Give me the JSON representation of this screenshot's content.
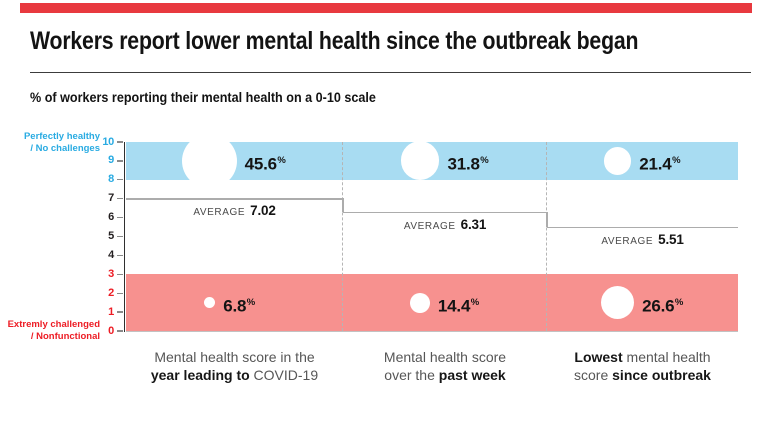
{
  "colors": {
    "accent_red": "#e8393f",
    "text_blue": "#29abe2",
    "text_red": "#ed1c24"
  },
  "header": {
    "title": "Workers report lower mental health since the outbreak began",
    "subtitle": "% of workers reporting their mental health on a 0-10 scale"
  },
  "axis": {
    "max_caption_line1": "Perfectly healthy",
    "max_caption_line2": "/ No challenges",
    "min_caption_line1": "Extremly challenged",
    "min_caption_line2": "/ Nonfunctional"
  },
  "chart_data": {
    "type": "scatter",
    "subtype": "distribution-bubbles-with-bands",
    "title": "% of workers reporting their mental health on a 0-10 scale",
    "ylim": [
      0,
      10
    ],
    "yticks": [
      0,
      1,
      2,
      3,
      4,
      5,
      6,
      7,
      8,
      9,
      10
    ],
    "grid": false,
    "pct_suffix": "%",
    "average_label": "AVERAGE",
    "bands": {
      "healthy": {
        "from": 8,
        "to": 10,
        "color": "#a8dcf2"
      },
      "challenged": {
        "from": 0,
        "to": 3,
        "color": "#f7918f"
      }
    },
    "columns": [
      {
        "average": 7.02,
        "healthy_pct": 45.6,
        "challenged_pct": 6.8,
        "caption": [
          [
            {
              "t": "Mental health score in the",
              "b": false
            }
          ],
          [
            {
              "t": "year leading to",
              "b": true
            },
            {
              "t": " COVID-19",
              "b": false
            }
          ]
        ]
      },
      {
        "average": 6.31,
        "healthy_pct": 31.8,
        "challenged_pct": 14.4,
        "caption": [
          [
            {
              "t": "Mental health score",
              "b": false
            }
          ],
          [
            {
              "t": "over the ",
              "b": false
            },
            {
              "t": "past week",
              "b": true
            }
          ]
        ]
      },
      {
        "average": 5.51,
        "healthy_pct": 21.4,
        "challenged_pct": 26.6,
        "caption": [
          [
            {
              "t": "Lowest",
              "b": true
            },
            {
              "t": " mental health",
              "b": false
            }
          ],
          [
            {
              "t": "score ",
              "b": false
            },
            {
              "t": "since outbreak",
              "b": true
            }
          ]
        ]
      }
    ]
  }
}
